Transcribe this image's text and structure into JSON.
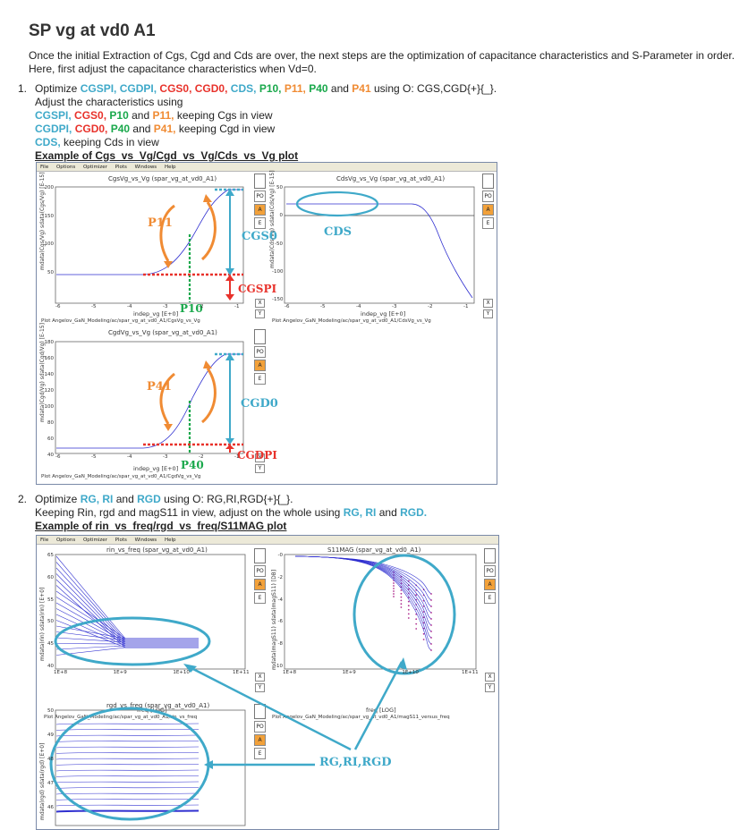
{
  "title": "SP vg at vd0 A1",
  "intro": [
    "Once the initial Extraction of Cgs, Cgd and Cds are over, the next steps are the optimization of capacitance characteristics and S-Parameter in order.",
    "Here, first adjust the capacitance characteristics when Vd=0."
  ],
  "step1": {
    "num": "1.",
    "optimize_prefix": "Optimize",
    "params": [
      "CGSPI,",
      "CGDPI,",
      "CGS0,",
      "CGD0,",
      "CDS,",
      "P10,",
      "P11,",
      "P40",
      "P41"
    ],
    "and": "and",
    "using": "using O: CGS,CGD{+}{_}.",
    "adjust": "Adjust the characteristics using",
    "line_cgs_params": [
      "CGSPI,",
      "CGS0,",
      "P10"
    ],
    "line_cgs_and": "and",
    "line_cgs_last": "P11,",
    "line_cgs_suffix": "keeping Cgs in view",
    "line_cgd_params": [
      "CGDPI,",
      "CGD0,",
      "P40"
    ],
    "line_cgd_and": "and",
    "line_cgd_last": "P41,",
    "line_cgd_suffix": "keeping Cgd in view",
    "line_cds_param": "CDS,",
    "line_cds_suffix": "keeping Cds in view",
    "example": "Example of Cgs_vs_Vg/Cgd_vs_Vg/Cds_vs_Vg plot"
  },
  "step2": {
    "num": "2.",
    "optimize_prefix": "Optimize",
    "p1": "RG,",
    "p2": "RI",
    "and": "and",
    "p3": "RGD",
    "using": "using O: RG,RI,RGD{+}{_}.",
    "line2_prefix": "Keeping Rin, rgd and magS11 in view, adjust on the whole using",
    "line2_p1": "RG,",
    "line2_p2": "RI",
    "line2_and": "and",
    "line2_p3": "RGD.",
    "example": "Example of rin_vs_freq/rgd_vs_freq/S11MAG plot"
  },
  "menu": [
    "File",
    "Options",
    "Optimizer",
    "Plots",
    "Windows",
    "Help"
  ],
  "side_buttons": [
    "PO",
    "A",
    "E"
  ],
  "xy_buttons": [
    "X",
    "Y"
  ],
  "window1": {
    "cgs": {
      "title": "CgsVg_vs_Vg (spar_vg_at_vd0_A1)",
      "ylabel": "mdata(Cgs/Vg) sdata(Cgs/Vg) [E-15]",
      "xlabel": "indep_vg [E+0]",
      "path": "Plot Angelov_GaN_Modeling/ac/spar_vg_at_vd0_A1/CgsVg_vs_Vg",
      "yticks": [
        "200",
        "150",
        "100",
        "50"
      ],
      "xticks": [
        "-6",
        "-5",
        "-4",
        "-3",
        "-2",
        "-1"
      ]
    },
    "cds": {
      "title": "CdsVg_vs_Vg (spar_vg_at_vd0_A1)",
      "ylabel": "mdata(Cds/Vg) sdata(Cds/Vg) [E-15]",
      "xlabel": "indep_vg [E+0]",
      "path": "Plot Angelov_GaN_Modeling/ac/spar_vg_at_vd0_A1/CdsVg_vs_Vg",
      "yticks": [
        "50",
        "0",
        "-50",
        "-100",
        "-150"
      ],
      "xticks": [
        "-6",
        "-5",
        "-4",
        "-3",
        "-2",
        "-1"
      ]
    },
    "cgd": {
      "title": "CgdVg_vs_Vg (spar_vg_at_vd0_A1)",
      "ylabel": "mdata(Cgd/Vg) sdata(Cgd/Vg) [E-15]",
      "xlabel": "indep_vg [E+0]",
      "path": "Plot Angelov_GaN_Modeling/ac/spar_vg_at_vd0_A1/CgdVg_vs_Vg",
      "yticks": [
        "180",
        "160",
        "140",
        "120",
        "100",
        "80",
        "60",
        "40"
      ],
      "xticks": [
        "-6",
        "-5",
        "-4",
        "-3",
        "-2",
        "-1"
      ]
    },
    "annotations": {
      "p11": "P11",
      "cgs0": "CGS0",
      "cgspi": "CGSPI",
      "p10": "P10",
      "cds": "CDS",
      "p41": "P41",
      "cgd0": "CGD0",
      "cgdpi": "CGDPI",
      "p40": "P40"
    }
  },
  "window2": {
    "rin": {
      "title": "rin_vs_freq (spar_vg_at_vd0_A1)",
      "ylabel": "mdata(rin) sdata(rin) [E+0]",
      "xlabel": "freq [LOG]",
      "path": "Plot Angelov_GaN_Modeling/ac/spar_vg_at_vd0_A1/rin_vs_freq",
      "yticks": [
        "65",
        "60",
        "55",
        "50",
        "45",
        "40"
      ],
      "xticks": [
        "1E+8",
        "1E+9",
        "1E+10",
        "1E+11"
      ]
    },
    "s11": {
      "title": "S11MAG (spar_vg_at_vd0_A1)",
      "ylabel": "mdata(magS11) sdata(magS11) [DB]",
      "xlabel": "freq [LOG]",
      "path": "Plot Angelov_GaN_Modeling/ac/spar_vg_at_vd0_A1/magS11_versus_freq",
      "yticks": [
        "-0",
        "-2",
        "-4",
        "-6",
        "-8",
        "-10"
      ],
      "xticks": [
        "1E+8",
        "1E+9",
        "1E+10",
        "1E+11"
      ]
    },
    "rgd": {
      "title": "rgd_vs_freq (spar_vg_at_vd0_A1)",
      "ylabel": "mdata(rgd) sdata(rgd) [E+0]",
      "yticks": [
        "50",
        "49",
        "48",
        "47",
        "46"
      ]
    },
    "annotation": "RG,RI,RGD"
  },
  "colors": {
    "cyan": "#3fa9c9",
    "red": "#e8322b",
    "green": "#19a84b",
    "orange": "#f08b33",
    "curve": "#3030d0"
  }
}
